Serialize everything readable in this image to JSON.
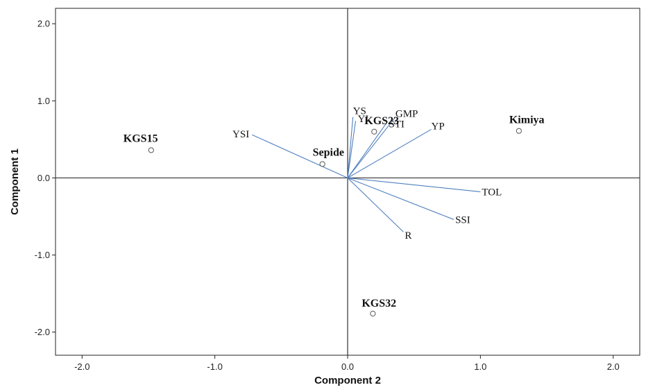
{
  "chart_data": {
    "type": "scatter",
    "title": "",
    "xlabel": "Component 2",
    "ylabel": "Component 1",
    "xlim": [
      -2.2,
      2.2
    ],
    "ylim": [
      -2.3,
      2.2
    ],
    "xticks": [
      -2.0,
      -1.0,
      0.0,
      1.0,
      2.0
    ],
    "yticks": [
      -2.0,
      -1.0,
      0.0,
      1.0,
      2.0
    ],
    "xtick_labels": [
      "-2.0",
      "-1.0",
      "0.0",
      "1.0",
      "2.0"
    ],
    "ytick_labels": [
      "-2.0",
      "-1.0",
      "0.0",
      "1.0",
      "2.0"
    ],
    "reference_lines": {
      "x": 0,
      "y": 0
    },
    "grid": false,
    "legend": "none",
    "vector_color": "#4f7fbf",
    "point_color": "#555555",
    "genotypes": [
      {
        "name": "KGS15",
        "x": -1.48,
        "y": 0.36
      },
      {
        "name": "Sepide",
        "x": -0.19,
        "y": 0.18
      },
      {
        "name": "KGS23",
        "x": 0.2,
        "y": 0.6
      },
      {
        "name": "Kimiya",
        "x": 1.29,
        "y": 0.61
      },
      {
        "name": "KGS32",
        "x": 0.19,
        "y": -1.76
      }
    ],
    "vectors": [
      {
        "name": "YSI",
        "x": -0.72,
        "y": 0.56
      },
      {
        "name": "YS",
        "x": 0.04,
        "y": 0.79
      },
      {
        "name": "YI",
        "x": 0.06,
        "y": 0.74
      },
      {
        "name": "GMP",
        "x": 0.36,
        "y": 0.79
      },
      {
        "name": "STI",
        "x": 0.3,
        "y": 0.73
      },
      {
        "name": "YP",
        "x": 0.63,
        "y": 0.63
      },
      {
        "name": "TOL",
        "x": 1.0,
        "y": -0.18
      },
      {
        "name": "SSI",
        "x": 0.8,
        "y": -0.54
      },
      {
        "name": "R",
        "x": 0.42,
        "y": -0.7
      }
    ]
  }
}
